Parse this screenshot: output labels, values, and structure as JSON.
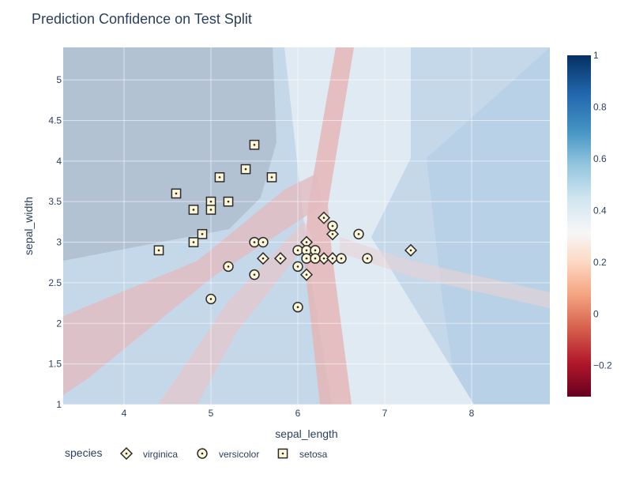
{
  "chart_data": {
    "type": "scatter",
    "title": "Prediction Confidence on Test Split",
    "xlabel": "sepal_length",
    "ylabel": "sepal_width",
    "xlim": [
      3.3,
      8.9
    ],
    "ylim": [
      1,
      5.4
    ],
    "x_ticks": [
      4,
      5,
      6,
      7,
      8
    ],
    "y_ticks": [
      1,
      1.5,
      2,
      2.5,
      3,
      3.5,
      4,
      4.5,
      5
    ],
    "grid": true,
    "background": "contour confidence surface",
    "colorbar": {
      "range": [
        -0.32,
        1
      ],
      "ticks": [
        -0.2,
        0,
        0.2,
        0.4,
        0.6,
        0.8,
        1
      ],
      "tick_labels": [
        "−0.2",
        "0",
        "0.2",
        "0.4",
        "0.6",
        "0.8",
        "1"
      ],
      "colorscale": "RdBu"
    },
    "legend": {
      "title": "species",
      "placement": "bottom"
    },
    "series": [
      {
        "name": "virginica",
        "marker": "diamond",
        "points": [
          [
            6.3,
            3.3
          ],
          [
            6.1,
            3.0
          ],
          [
            6.4,
            3.1
          ],
          [
            5.6,
            2.8
          ],
          [
            5.8,
            2.8
          ],
          [
            6.1,
            2.6
          ],
          [
            6.3,
            2.8
          ],
          [
            6.4,
            2.8
          ],
          [
            7.3,
            2.9
          ]
        ]
      },
      {
        "name": "versicolor",
        "marker": "circle",
        "points": [
          [
            5.5,
            3.0
          ],
          [
            5.6,
            3.0
          ],
          [
            5.2,
            2.7
          ],
          [
            5.5,
            2.6
          ],
          [
            6.0,
            2.9
          ],
          [
            6.1,
            2.9
          ],
          [
            6.2,
            2.9
          ],
          [
            6.0,
            2.7
          ],
          [
            6.1,
            2.8
          ],
          [
            6.2,
            2.8
          ],
          [
            6.5,
            2.8
          ],
          [
            6.4,
            3.2
          ],
          [
            6.7,
            3.1
          ],
          [
            6.8,
            2.8
          ],
          [
            5.0,
            2.3
          ],
          [
            6.0,
            2.2
          ]
        ]
      },
      {
        "name": "setosa",
        "marker": "square",
        "points": [
          [
            5.5,
            4.2
          ],
          [
            5.4,
            3.9
          ],
          [
            5.1,
            3.8
          ],
          [
            5.7,
            3.8
          ],
          [
            4.6,
            3.6
          ],
          [
            5.0,
            3.5
          ],
          [
            5.2,
            3.5
          ],
          [
            4.8,
            3.4
          ],
          [
            5.0,
            3.4
          ],
          [
            4.9,
            3.1
          ],
          [
            4.8,
            3.0
          ],
          [
            4.4,
            2.9
          ]
        ]
      }
    ]
  }
}
